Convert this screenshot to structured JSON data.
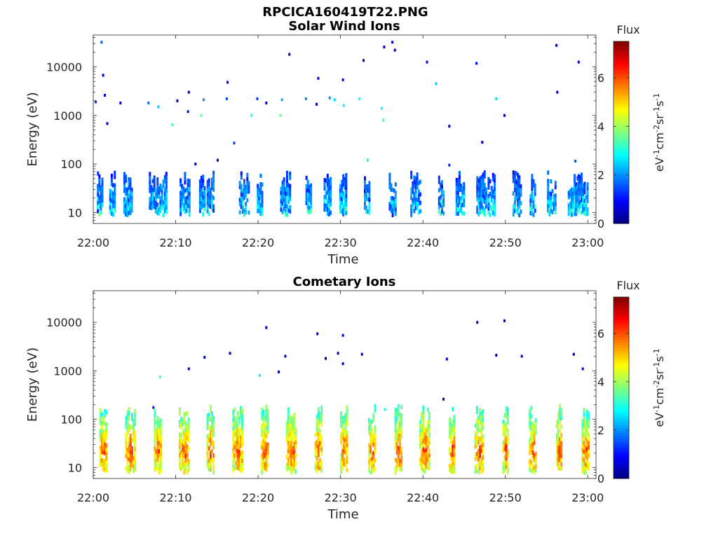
{
  "figure": {
    "file_title": "RPCICA160419T22.PNG"
  },
  "chart_data": [
    {
      "type": "heatmap",
      "title": "Solar Wind Ions",
      "xlabel": "Time",
      "ylabel": "Energy (eV)",
      "x_ticks": [
        "22:00",
        "22:10",
        "22:20",
        "22:30",
        "22:40",
        "22:50",
        "23:00"
      ],
      "x_range": [
        "22:00",
        "23:01"
      ],
      "y_scale": "log",
      "y_ticks": [
        10,
        100,
        1000,
        10000
      ],
      "y_range": [
        6,
        45000
      ],
      "colorbar": {
        "label": "Flux",
        "unit": "eV-1cm-2sr-1s-1",
        "ticks": [
          0,
          2,
          4,
          6
        ],
        "range": [
          0,
          7.5
        ],
        "colormap": "jet"
      },
      "burst_minutes": [
        0.8,
        2.3,
        4.2,
        7.2,
        8.3,
        11.1,
        13.2,
        14.2,
        18.3,
        20.2,
        23.3,
        26.1,
        28.4,
        30.3,
        33.2,
        36.3,
        39.1,
        42.2,
        44.5,
        47.1,
        48.3,
        51.4,
        53.3,
        55.6,
        58.2,
        59.4
      ],
      "burst_levels": {
        "energy_eV": [
          8,
          45
        ],
        "flux_typical": 1.5,
        "flux_peak": 3.5
      },
      "scattered_points": [
        {
          "t": 0.3,
          "e": 1900,
          "f": 1.2
        },
        {
          "t": 1.2,
          "e": 6700,
          "f": 0.6
        },
        {
          "t": 1.4,
          "e": 2600,
          "f": 0.8
        },
        {
          "t": 1.7,
          "e": 680,
          "f": 0.5
        },
        {
          "t": 3.3,
          "e": 1800,
          "f": 0.9
        },
        {
          "t": 1.0,
          "e": 32000,
          "f": 1.6
        },
        {
          "t": 6.7,
          "e": 1800,
          "f": 1.8
        },
        {
          "t": 7.9,
          "e": 1500,
          "f": 2.4
        },
        {
          "t": 9.6,
          "e": 650,
          "f": 3.2
        },
        {
          "t": 10.2,
          "e": 2000,
          "f": 0.5
        },
        {
          "t": 11.6,
          "e": 3000,
          "f": 0.4
        },
        {
          "t": 11.5,
          "e": 1200,
          "f": 1.0
        },
        {
          "t": 13.1,
          "e": 1000,
          "f": 3.5
        },
        {
          "t": 13.4,
          "e": 2100,
          "f": 2.0
        },
        {
          "t": 16.3,
          "e": 4800,
          "f": 0.8
        },
        {
          "t": 16.2,
          "e": 2200,
          "f": 1.5
        },
        {
          "t": 17.1,
          "e": 270,
          "f": 1.4
        },
        {
          "t": 19.2,
          "e": 1000,
          "f": 3.0
        },
        {
          "t": 19.9,
          "e": 2200,
          "f": 1.4
        },
        {
          "t": 21.0,
          "e": 1800,
          "f": 0.8
        },
        {
          "t": 22.7,
          "e": 1000,
          "f": 3.6
        },
        {
          "t": 22.9,
          "e": 2100,
          "f": 2.2
        },
        {
          "t": 23.8,
          "e": 18000,
          "f": 0.3
        },
        {
          "t": 25.8,
          "e": 2200,
          "f": 1.9
        },
        {
          "t": 27.3,
          "e": 5800,
          "f": 0.5
        },
        {
          "t": 27.1,
          "e": 1700,
          "f": 0.6
        },
        {
          "t": 28.7,
          "e": 2300,
          "f": 2.0
        },
        {
          "t": 29.3,
          "e": 2100,
          "f": 2.6
        },
        {
          "t": 30.3,
          "e": 5400,
          "f": 0.6
        },
        {
          "t": 30.4,
          "e": 1600,
          "f": 2.8
        },
        {
          "t": 32.3,
          "e": 2200,
          "f": 3.0
        },
        {
          "t": 32.8,
          "e": 13500,
          "f": 0.5
        },
        {
          "t": 35.3,
          "e": 25500,
          "f": 0.6
        },
        {
          "t": 36.3,
          "e": 32000,
          "f": 0.8
        },
        {
          "t": 36.6,
          "e": 22000,
          "f": 0.5
        },
        {
          "t": 35.0,
          "e": 1400,
          "f": 2.8
        },
        {
          "t": 35.2,
          "e": 800,
          "f": 3.2
        },
        {
          "t": 40.5,
          "e": 12500,
          "f": 0.7
        },
        {
          "t": 41.6,
          "e": 4500,
          "f": 2.4
        },
        {
          "t": 43.2,
          "e": 600,
          "f": 0.5
        },
        {
          "t": 46.5,
          "e": 11800,
          "f": 0.9
        },
        {
          "t": 48.9,
          "e": 2200,
          "f": 2.6
        },
        {
          "t": 49.9,
          "e": 1000,
          "f": 0.5
        },
        {
          "t": 56.2,
          "e": 27500,
          "f": 0.5
        },
        {
          "t": 56.3,
          "e": 3000,
          "f": 0.5
        },
        {
          "t": 58.9,
          "e": 12500,
          "f": 0.6
        },
        {
          "t": 58.5,
          "e": 115,
          "f": 1.5
        },
        {
          "t": 33.3,
          "e": 120,
          "f": 2.8
        },
        {
          "t": 43.2,
          "e": 95,
          "f": 1.2
        },
        {
          "t": 47.2,
          "e": 280,
          "f": 0.5
        },
        {
          "t": 12.4,
          "e": 100,
          "f": 0.6
        },
        {
          "t": 15.1,
          "e": 120,
          "f": 0.7
        }
      ]
    },
    {
      "type": "heatmap",
      "title": "Cometary Ions",
      "xlabel": "Time",
      "ylabel": "Energy (eV)",
      "x_ticks": [
        "22:00",
        "22:10",
        "22:20",
        "22:30",
        "22:40",
        "22:50",
        "23:00"
      ],
      "x_range": [
        "22:00",
        "23:01"
      ],
      "y_scale": "log",
      "y_ticks": [
        10,
        100,
        1000,
        10000
      ],
      "y_range": [
        6,
        45000
      ],
      "colorbar": {
        "label": "Flux",
        "unit": "eV-1cm-2sr-1s-1",
        "ticks": [
          0,
          2,
          4,
          6
        ],
        "range": [
          0,
          7.5
        ],
        "colormap": "jet"
      },
      "burst_minutes": [
        1.2,
        4.5,
        7.8,
        11.0,
        14.2,
        17.5,
        20.8,
        24.0,
        27.3,
        30.4,
        33.8,
        37.0,
        40.2,
        43.5,
        46.8,
        50.0,
        53.3,
        56.5,
        59.7
      ],
      "burst_levels": {
        "energy_eV": [
          7,
          130
        ],
        "flux_typical": 3.5,
        "flux_peak": 6.3
      },
      "scattered_points": [
        {
          "t": 8.1,
          "e": 750,
          "f": 3.3
        },
        {
          "t": 11.6,
          "e": 1100,
          "f": 0.6
        },
        {
          "t": 13.5,
          "e": 1900,
          "f": 0.5
        },
        {
          "t": 16.6,
          "e": 2300,
          "f": 0.5
        },
        {
          "t": 20.2,
          "e": 800,
          "f": 2.7
        },
        {
          "t": 21.0,
          "e": 7800,
          "f": 0.5
        },
        {
          "t": 22.5,
          "e": 950,
          "f": 0.5
        },
        {
          "t": 23.3,
          "e": 2000,
          "f": 0.5
        },
        {
          "t": 27.2,
          "e": 5800,
          "f": 0.6
        },
        {
          "t": 28.2,
          "e": 1800,
          "f": 0.4
        },
        {
          "t": 29.7,
          "e": 2300,
          "f": 0.4
        },
        {
          "t": 30.3,
          "e": 5400,
          "f": 0.6
        },
        {
          "t": 30.3,
          "e": 1400,
          "f": 0.5
        },
        {
          "t": 32.6,
          "e": 2200,
          "f": 0.4
        },
        {
          "t": 42.9,
          "e": 1750,
          "f": 0.6
        },
        {
          "t": 46.6,
          "e": 10000,
          "f": 0.5
        },
        {
          "t": 48.9,
          "e": 2100,
          "f": 0.4
        },
        {
          "t": 49.9,
          "e": 10800,
          "f": 0.5
        },
        {
          "t": 52.0,
          "e": 2000,
          "f": 0.5
        },
        {
          "t": 58.3,
          "e": 2200,
          "f": 0.5
        },
        {
          "t": 59.4,
          "e": 1100,
          "f": 0.7
        },
        {
          "t": 42.5,
          "e": 260,
          "f": 0.6
        },
        {
          "t": 7.3,
          "e": 175,
          "f": 1.2
        },
        {
          "t": 35.4,
          "e": 160,
          "f": 3.0
        }
      ]
    }
  ]
}
